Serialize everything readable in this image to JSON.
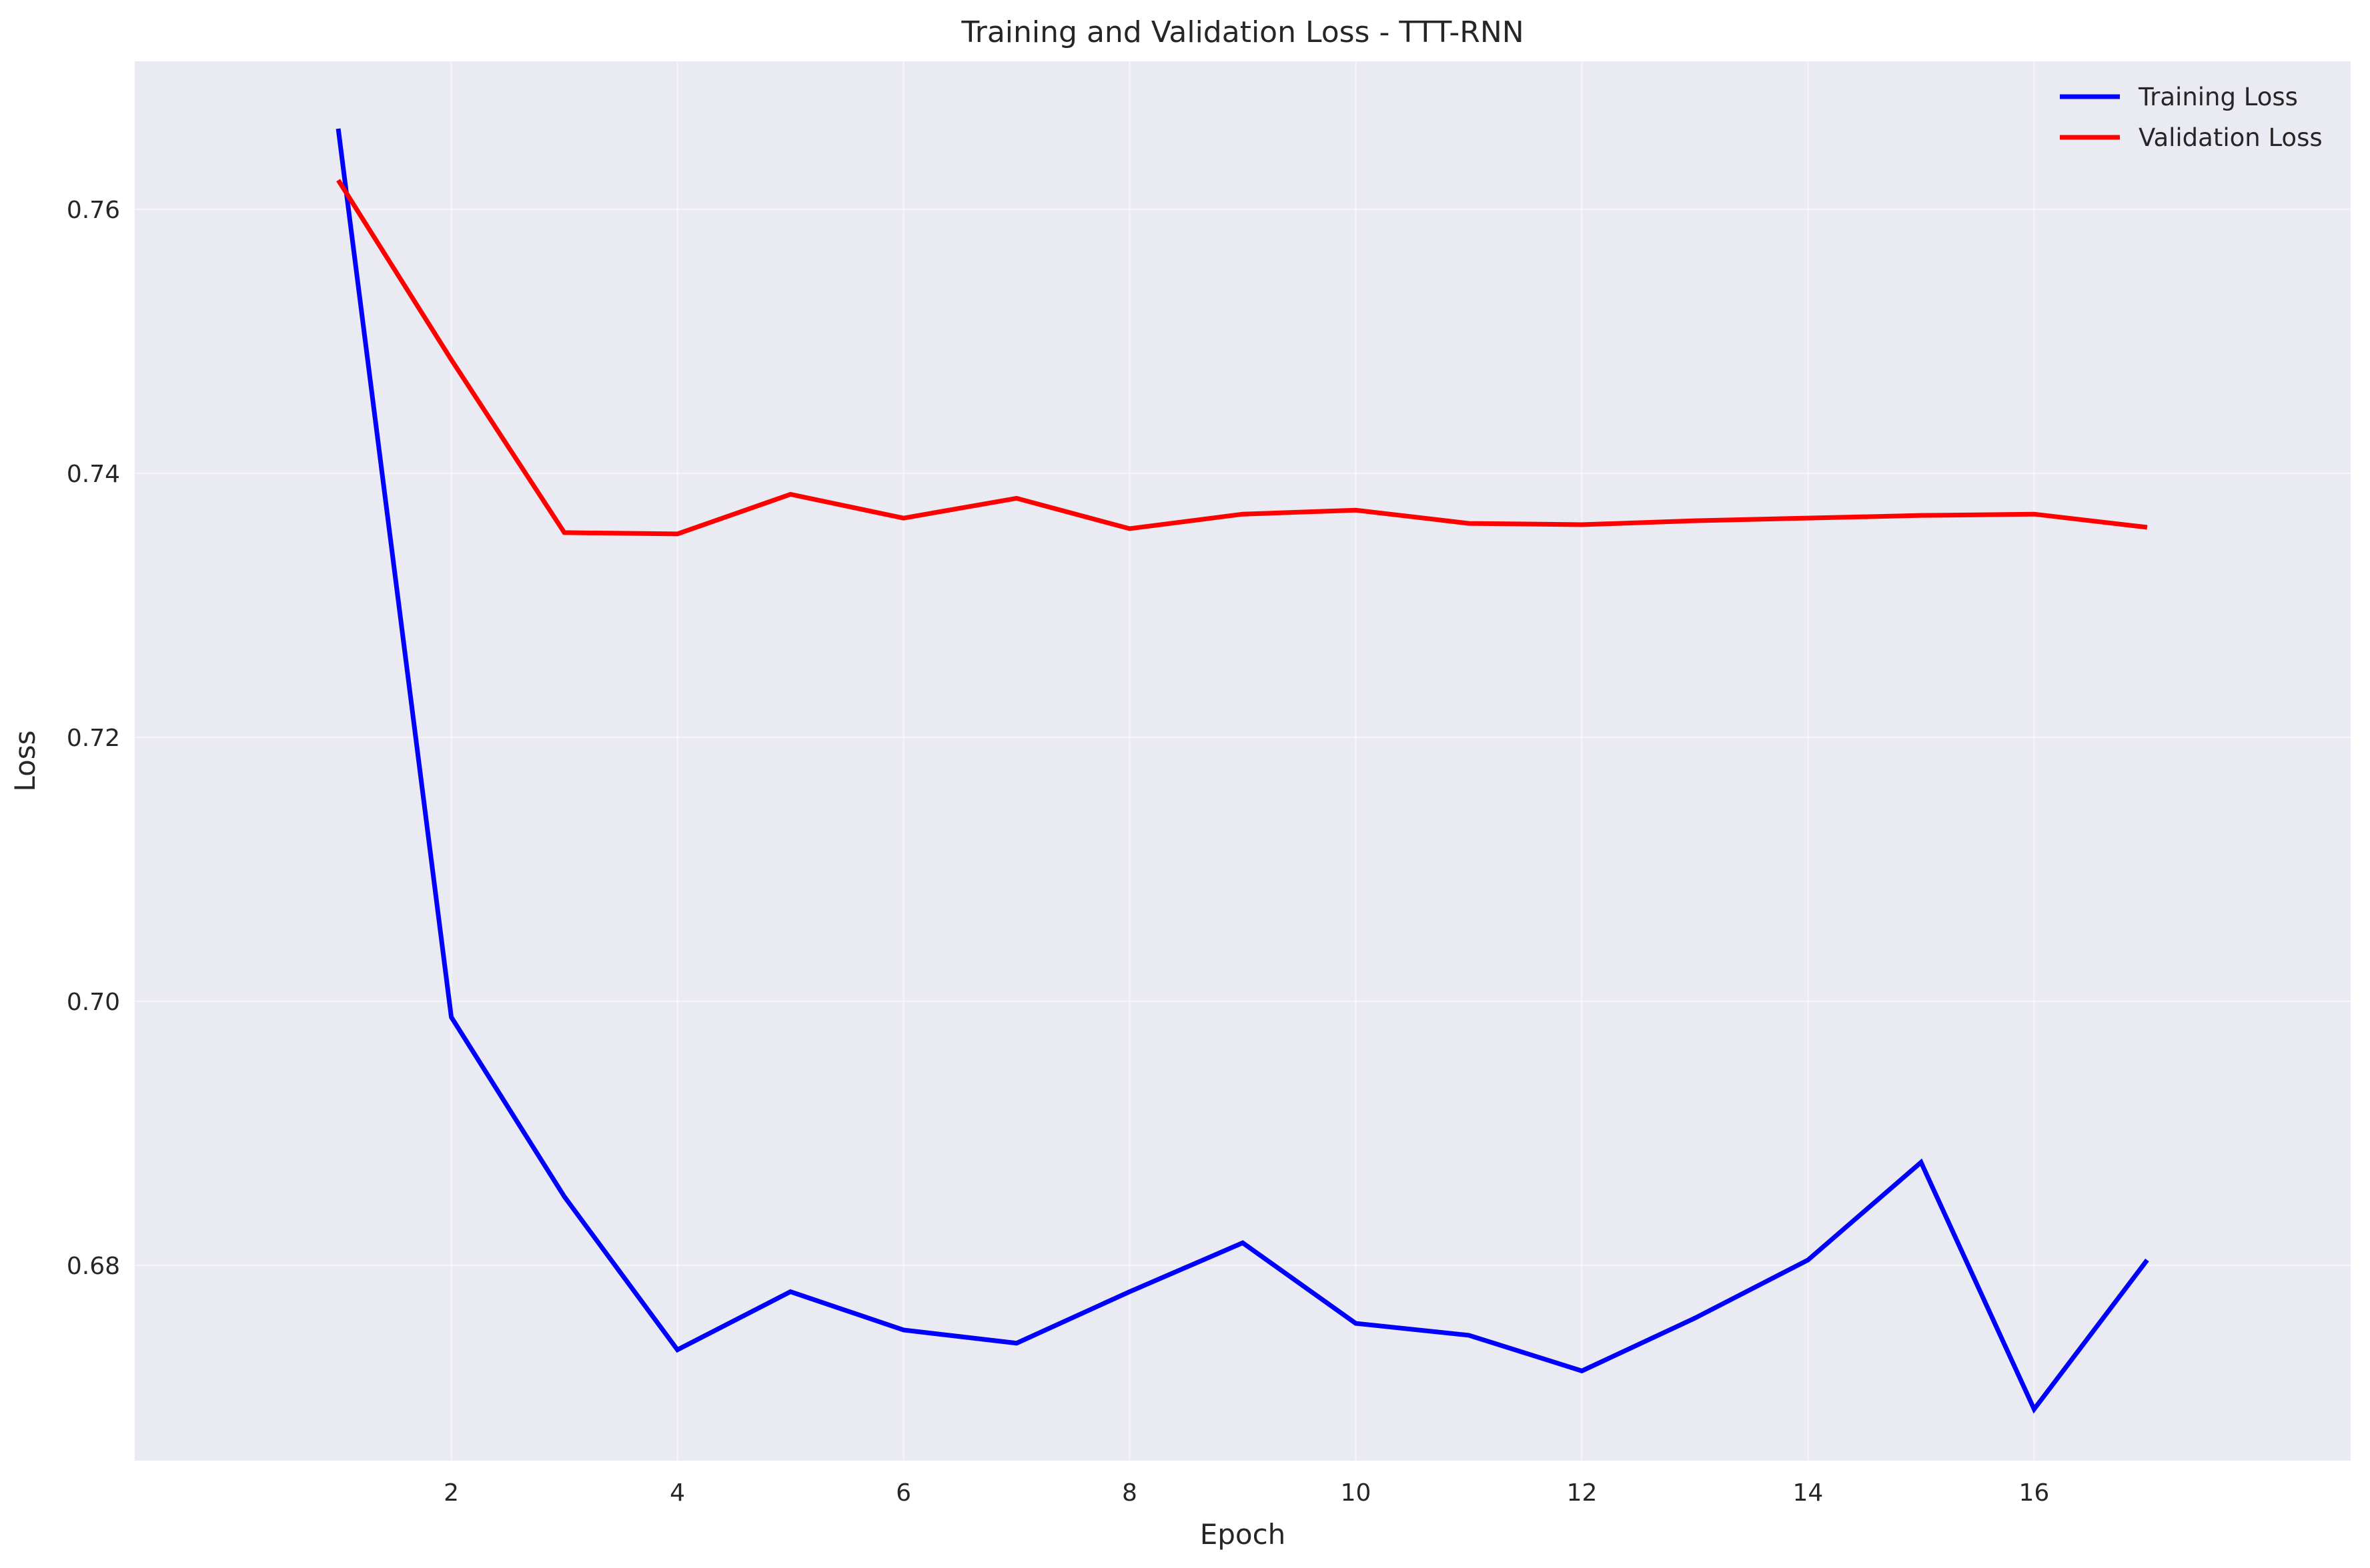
{
  "chart_data": {
    "type": "line",
    "title": "Training and Validation Loss - TTT-RNN",
    "xlabel": "Epoch",
    "ylabel": "Loss",
    "x": [
      1,
      2,
      3,
      4,
      5,
      6,
      7,
      8,
      9,
      10,
      11,
      12,
      13,
      14,
      15,
      16,
      17
    ],
    "xlim": [
      -0.8,
      18.8
    ],
    "ylim": [
      0.6652,
      0.7712
    ],
    "xticks": [
      2,
      4,
      6,
      8,
      10,
      12,
      14,
      16
    ],
    "yticks": [
      0.68,
      0.7,
      0.72,
      0.74,
      0.76
    ],
    "ytick_labels": [
      "0.68",
      "0.70",
      "0.72",
      "0.74",
      "0.76"
    ],
    "grid": true,
    "legend_position": "top-right",
    "background_color": "#eaeaf2",
    "series": [
      {
        "name": "Training Loss",
        "color": "#0000ff",
        "values": [
          0.7661,
          0.6988,
          0.6852,
          0.6736,
          0.678,
          0.6751,
          0.6741,
          0.678,
          0.6817,
          0.6756,
          0.6747,
          0.672,
          0.676,
          0.6804,
          0.6878,
          0.6691,
          0.6804
        ]
      },
      {
        "name": "Validation Loss",
        "color": "#ff0000",
        "values": [
          0.7622,
          0.7486,
          0.7355,
          0.7354,
          0.7384,
          0.7366,
          0.7381,
          0.7358,
          0.7369,
          0.7372,
          0.7362,
          0.7361,
          0.7364,
          0.7366,
          0.7368,
          0.7369,
          0.7359
        ]
      }
    ]
  }
}
